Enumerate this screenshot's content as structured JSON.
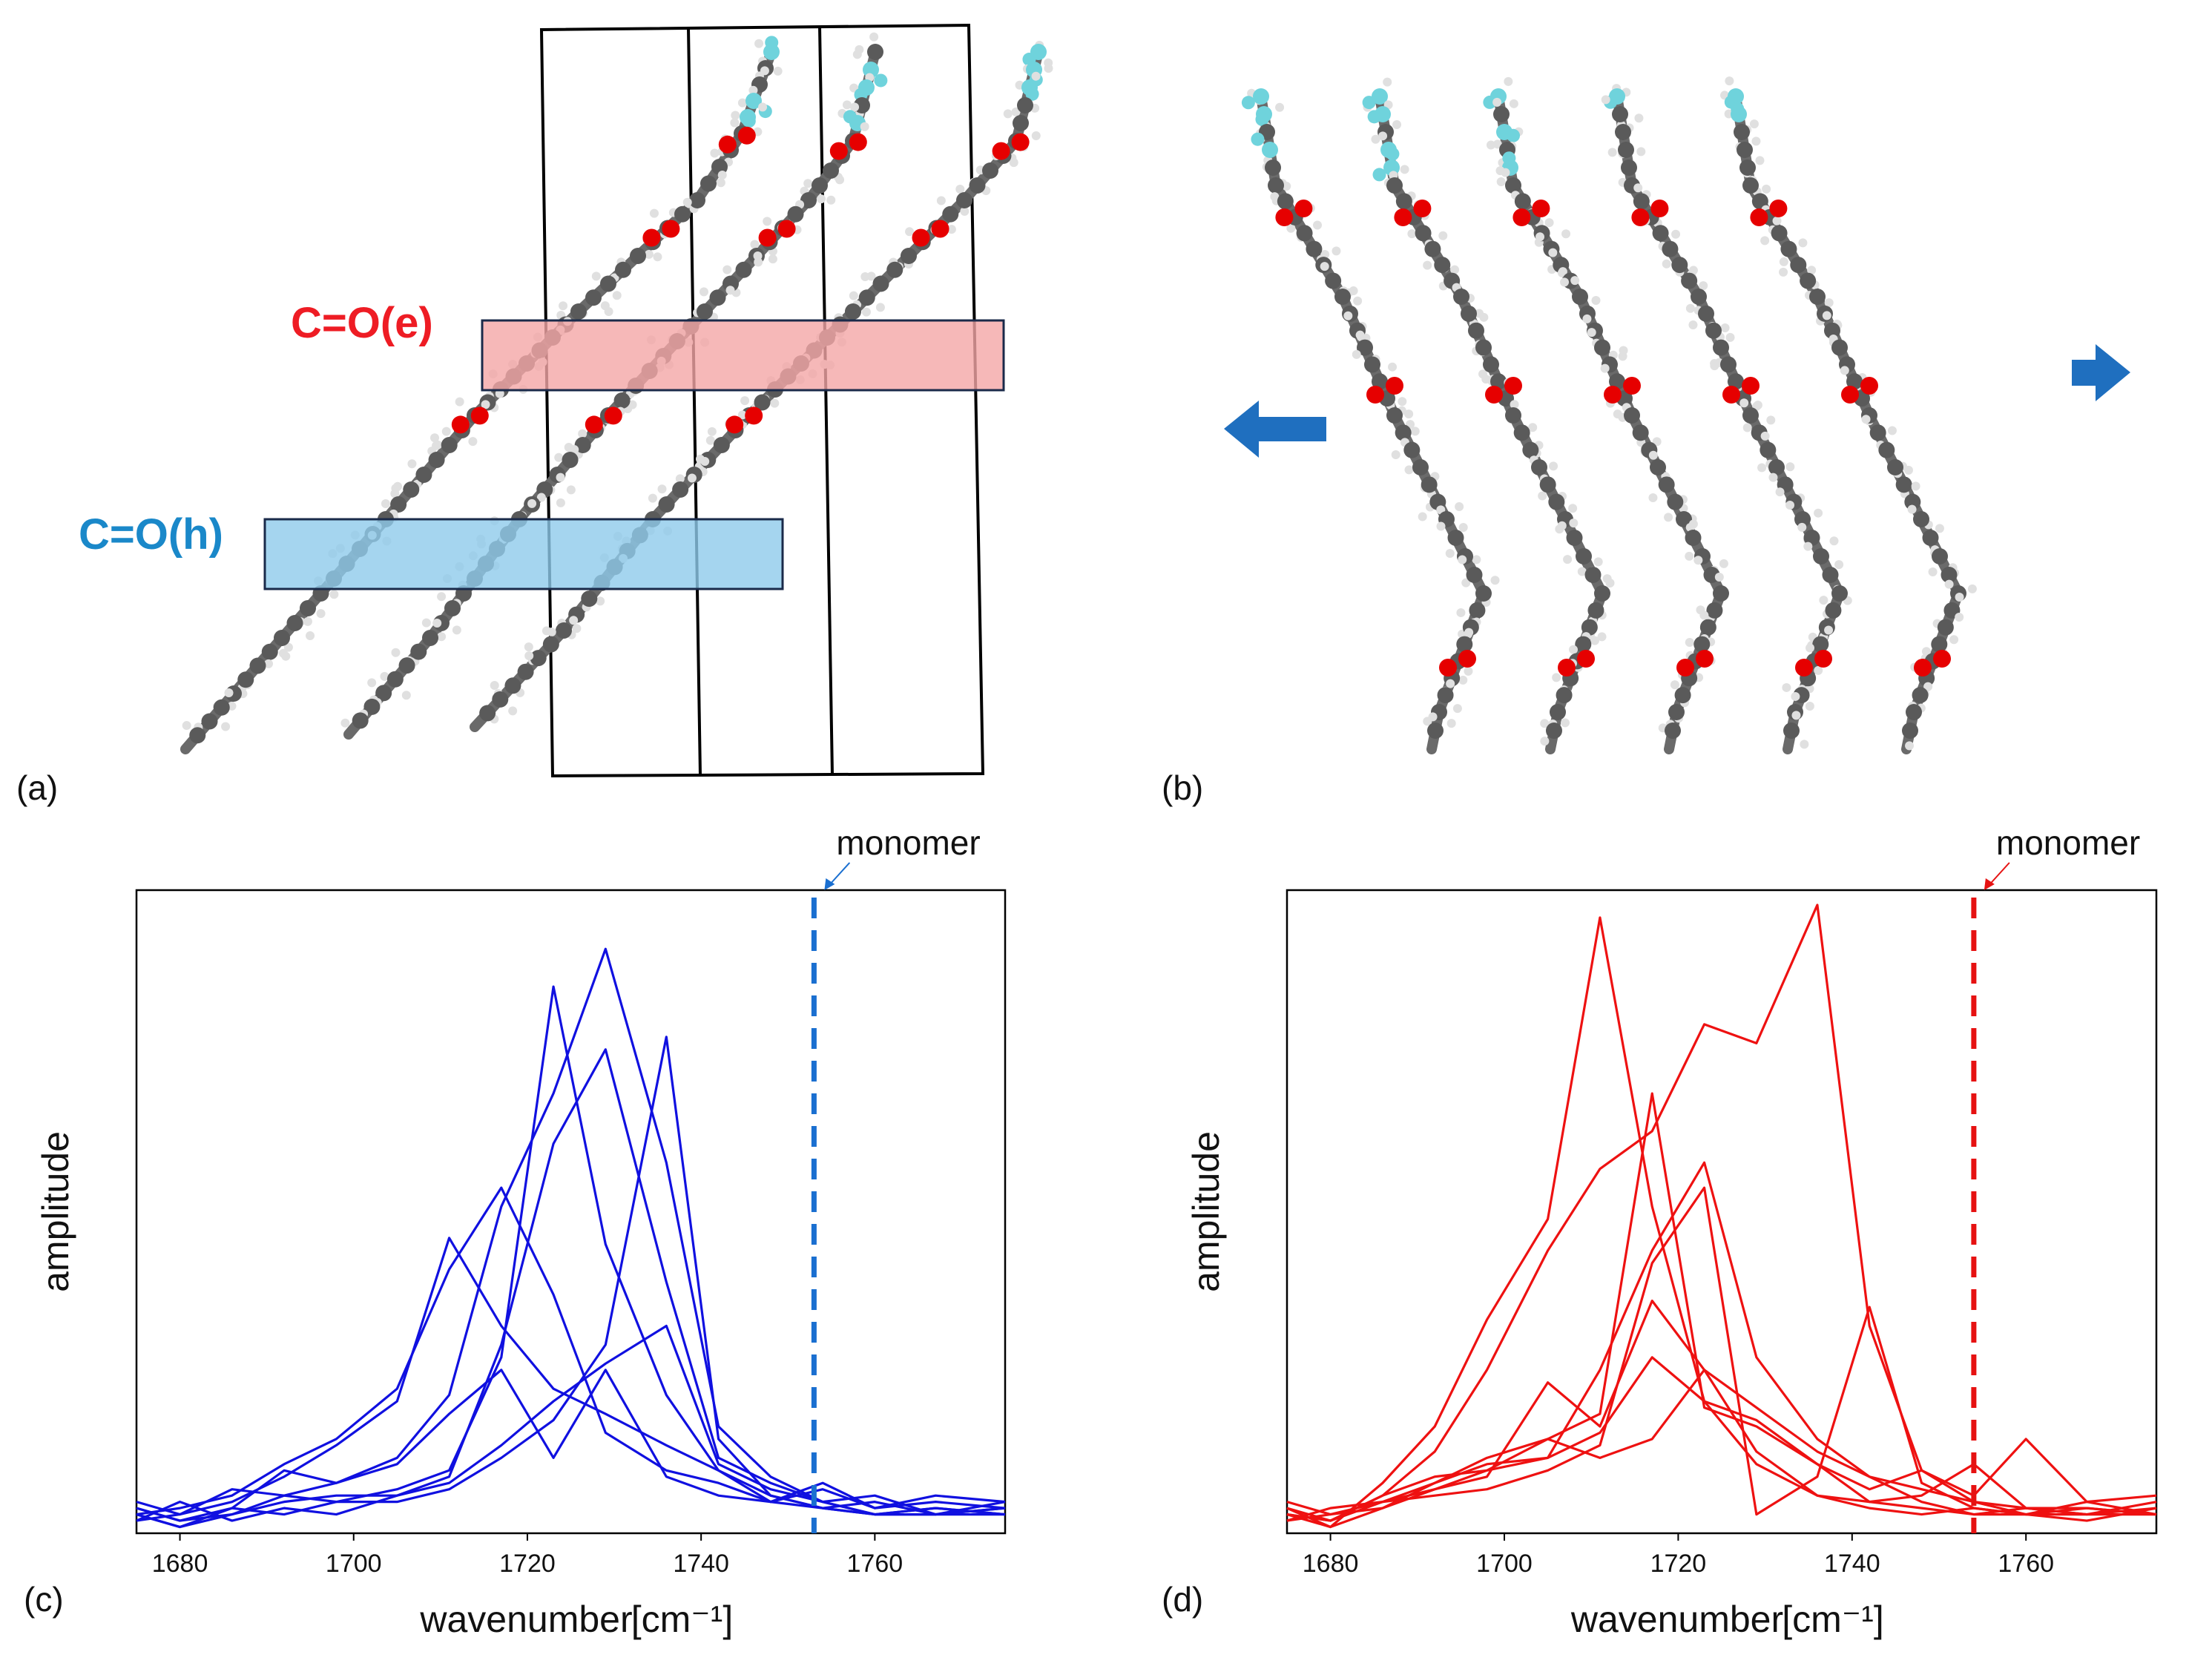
{
  "panels": {
    "a": {
      "label": "(a)",
      "band_ester": {
        "label": "C=O(e)",
        "color": "#ee1c24",
        "fill": "#f4a6a6"
      },
      "band_head": {
        "label": "C=O(h)",
        "color": "#1a88c9",
        "fill": "#8ecbeb"
      }
    },
    "b": {
      "label": "(b)",
      "arrow_color": "#1f6fbf"
    },
    "c": {
      "label": "(c)"
    },
    "d": {
      "label": "(d)"
    }
  },
  "atom_colors": {
    "carbon": "#5a5a5a",
    "hydrogen": "#e0e0e0",
    "oxygen": "#e60000",
    "fluorine": "#6fd3dc"
  },
  "chart_data": [
    {
      "type": "line",
      "panel": "c",
      "color": "#1010e0",
      "xlabel": "wavenumber",
      "xunit": "[cm⁻¹]",
      "ylabel": "amplitude",
      "xlim": [
        1675,
        1775
      ],
      "ylim": [
        0,
        1.0
      ],
      "xticks": [
        1680,
        1700,
        1720,
        1740,
        1760
      ],
      "grid": false,
      "annotation": {
        "text": "monomer",
        "x": 1753,
        "style": "dashed vertical line",
        "color": "#1a6fd0"
      },
      "x": [
        1675,
        1680,
        1686,
        1692,
        1698,
        1705,
        1711,
        1717,
        1723,
        1729,
        1736,
        1742,
        1748,
        1754,
        1760,
        1767,
        1775
      ],
      "series": [
        {
          "values": [
            0.03,
            0.01,
            0.04,
            0.03,
            0.05,
            0.07,
            0.1,
            0.28,
            0.87,
            0.46,
            0.22,
            0.1,
            0.05,
            0.07,
            0.04,
            0.05,
            0.04
          ]
        },
        {
          "values": [
            0.04,
            0.02,
            0.03,
            0.06,
            0.08,
            0.12,
            0.22,
            0.52,
            0.7,
            0.93,
            0.59,
            0.17,
            0.09,
            0.05,
            0.03,
            0.04,
            0.03
          ]
        },
        {
          "values": [
            0.02,
            0.05,
            0.02,
            0.04,
            0.03,
            0.06,
            0.09,
            0.3,
            0.62,
            0.77,
            0.4,
            0.12,
            0.08,
            0.05,
            0.06,
            0.03,
            0.05
          ]
        },
        {
          "values": [
            0.03,
            0.04,
            0.06,
            0.11,
            0.15,
            0.23,
            0.42,
            0.55,
            0.38,
            0.16,
            0.1,
            0.08,
            0.05,
            0.04,
            0.03,
            0.03,
            0.04
          ]
        },
        {
          "values": [
            0.05,
            0.03,
            0.05,
            0.09,
            0.14,
            0.21,
            0.47,
            0.33,
            0.23,
            0.19,
            0.14,
            0.1,
            0.06,
            0.04,
            0.03,
            0.04,
            0.03
          ]
        },
        {
          "values": [
            0.03,
            0.01,
            0.03,
            0.05,
            0.06,
            0.06,
            0.08,
            0.14,
            0.21,
            0.27,
            0.33,
            0.11,
            0.07,
            0.05,
            0.03,
            0.03,
            0.04
          ]
        },
        {
          "values": [
            0.02,
            0.03,
            0.07,
            0.06,
            0.05,
            0.05,
            0.07,
            0.12,
            0.18,
            0.3,
            0.79,
            0.15,
            0.06,
            0.04,
            0.05,
            0.03,
            0.03
          ]
        },
        {
          "values": [
            0.04,
            0.02,
            0.04,
            0.1,
            0.08,
            0.11,
            0.19,
            0.26,
            0.12,
            0.26,
            0.09,
            0.06,
            0.05,
            0.08,
            0.04,
            0.06,
            0.05
          ]
        }
      ]
    },
    {
      "type": "line",
      "panel": "d",
      "color": "#ee1111",
      "xlabel": "wavenumber",
      "xunit": "[cm⁻¹]",
      "ylabel": "amplitude",
      "xlim": [
        1675,
        1775
      ],
      "ylim": [
        0,
        1.0
      ],
      "xticks": [
        1680,
        1700,
        1720,
        1740,
        1760
      ],
      "grid": false,
      "annotation": {
        "text": "monomer",
        "x": 1754,
        "style": "dashed vertical line",
        "color": "#e61212"
      },
      "x": [
        1675,
        1680,
        1686,
        1692,
        1698,
        1705,
        1711,
        1717,
        1723,
        1729,
        1736,
        1742,
        1748,
        1754,
        1760,
        1767,
        1775
      ],
      "series": [
        {
          "values": [
            0.03,
            0.01,
            0.08,
            0.17,
            0.34,
            0.5,
            0.98,
            0.52,
            0.21,
            0.11,
            0.06,
            0.04,
            0.03,
            0.04,
            0.03,
            0.02,
            0.04
          ]
        },
        {
          "values": [
            0.04,
            0.02,
            0.06,
            0.13,
            0.26,
            0.45,
            0.58,
            0.64,
            0.81,
            0.78,
            1.0,
            0.33,
            0.1,
            0.05,
            0.03,
            0.04,
            0.03
          ]
        },
        {
          "values": [
            0.02,
            0.04,
            0.05,
            0.08,
            0.12,
            0.15,
            0.19,
            0.7,
            0.2,
            0.17,
            0.11,
            0.05,
            0.04,
            0.03,
            0.04,
            0.03,
            0.03
          ]
        },
        {
          "values": [
            0.03,
            0.02,
            0.06,
            0.09,
            0.1,
            0.12,
            0.26,
            0.45,
            0.59,
            0.28,
            0.15,
            0.09,
            0.05,
            0.03,
            0.03,
            0.05,
            0.03
          ]
        },
        {
          "values": [
            0.05,
            0.03,
            0.04,
            0.07,
            0.09,
            0.24,
            0.17,
            0.37,
            0.26,
            0.2,
            0.13,
            0.09,
            0.07,
            0.05,
            0.04,
            0.03,
            0.04
          ]
        },
        {
          "values": [
            0.02,
            0.03,
            0.05,
            0.06,
            0.07,
            0.1,
            0.14,
            0.43,
            0.55,
            0.03,
            0.09,
            0.36,
            0.08,
            0.04,
            0.03,
            0.03,
            0.05
          ]
        },
        {
          "values": [
            0.04,
            0.01,
            0.04,
            0.08,
            0.11,
            0.12,
            0.16,
            0.28,
            0.21,
            0.18,
            0.11,
            0.07,
            0.1,
            0.06,
            0.15,
            0.05,
            0.06
          ]
        },
        {
          "values": [
            0.03,
            0.02,
            0.05,
            0.07,
            0.1,
            0.15,
            0.12,
            0.15,
            0.26,
            0.13,
            0.06,
            0.05,
            0.06,
            0.11,
            0.04,
            0.04,
            0.03
          ]
        }
      ]
    }
  ]
}
